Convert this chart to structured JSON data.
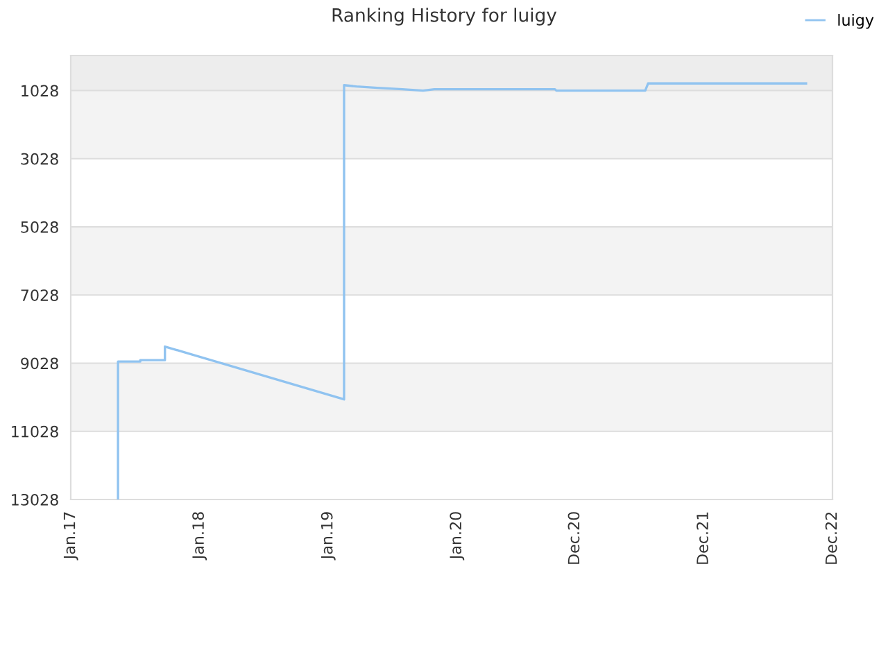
{
  "chart_data": {
    "type": "line",
    "title": "Ranking History for luigy",
    "x": [
      "2017-05-15",
      "2017-05-15",
      "2017-07-17",
      "2017-07-17",
      "2017-09-25",
      "2017-09-25",
      "2019-02-15",
      "2019-02-15",
      "2019-03-22",
      "2019-05-20",
      "2019-07-30",
      "2019-09-27",
      "2019-10-29",
      "2020-10-05",
      "2020-10-09",
      "2021-06-18",
      "2021-06-26",
      "2022-09-17"
    ],
    "series": [
      {
        "name": "luigy",
        "color": "#90c3f0",
        "values": [
          13028,
          8980,
          8980,
          8940,
          8940,
          8540,
          10090,
          870,
          910,
          950,
          990,
          1030,
          990,
          990,
          1030,
          1030,
          820,
          820
        ]
      }
    ],
    "xlim": [
      "2017-01-01",
      "2022-12-01"
    ],
    "xticks": [
      {
        "value": "2017-01",
        "label": "Jan.17"
      },
      {
        "value": "2018-01",
        "label": "Jan.18"
      },
      {
        "value": "2019-01",
        "label": "Jan.19"
      },
      {
        "value": "2020-01",
        "label": "Jan.20"
      },
      {
        "value": "2020-12",
        "label": "Dec.20"
      },
      {
        "value": "2021-12",
        "label": "Dec.21"
      },
      {
        "value": "2022-12",
        "label": "Dec.22"
      }
    ],
    "ylim": [
      13028,
      0
    ],
    "yticks": [
      1028,
      3028,
      5028,
      7028,
      9028,
      11028,
      13028
    ],
    "bands": [
      {
        "axis": "y",
        "from": 0,
        "to": 1028,
        "color": "#ededed"
      },
      {
        "axis": "y",
        "from": 1028,
        "to": 3028,
        "color": "#f3f3f3"
      },
      {
        "axis": "y",
        "from": 5028,
        "to": 7028,
        "color": "#f3f3f3"
      },
      {
        "axis": "y",
        "from": 9028,
        "to": 11028,
        "color": "#f3f3f3"
      }
    ],
    "grid": "y",
    "legend": "top right",
    "marker": "none",
    "line_style": "solid"
  }
}
